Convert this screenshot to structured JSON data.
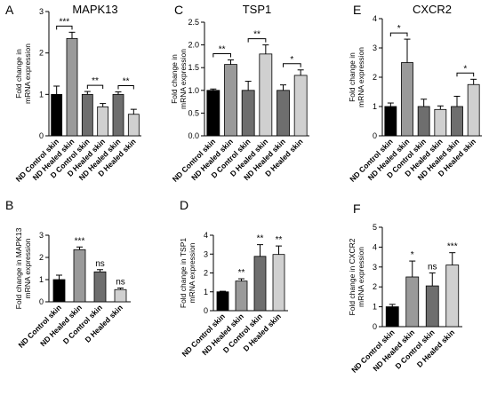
{
  "chart_data": [
    {
      "panel": "A",
      "type": "bar",
      "title": "MAPK13",
      "ylabel": [
        "Fold change in",
        "mRNA expression"
      ],
      "ylim": [
        0,
        3
      ],
      "yticks": [
        0,
        1,
        2,
        3
      ],
      "categories": [
        "ND Control skin",
        "ND Healed skin",
        "D Control skin",
        "D Healed skin",
        "ND Healed skin",
        "D Healed skin"
      ],
      "values": [
        1.0,
        2.35,
        1.0,
        0.7,
        1.0,
        0.52
      ],
      "errors": [
        0.2,
        0.15,
        0.07,
        0.08,
        0.06,
        0.12
      ],
      "colors": [
        "#000000",
        "#9a9a9a",
        "#6e6e6e",
        "#d0d0d0",
        "#6e6e6e",
        "#d0d0d0"
      ],
      "brackets": [
        {
          "from": 0,
          "to": 1,
          "label": "***"
        },
        {
          "from": 2,
          "to": 3,
          "label": "**"
        },
        {
          "from": 4,
          "to": 5,
          "label": "**"
        }
      ]
    },
    {
      "panel": "C",
      "type": "bar",
      "title": "TSP1",
      "ylabel": [
        "Fold change in",
        "mRNA expression"
      ],
      "ylim": [
        0,
        2.5
      ],
      "yticks": [
        0.0,
        0.5,
        1.0,
        1.5,
        2.0,
        2.5
      ],
      "categories": [
        "ND Control skin",
        "ND Healed skin",
        "D Control skin",
        "D Healed skin",
        "ND Healed skin",
        "D Healed skin"
      ],
      "values": [
        1.0,
        1.57,
        1.0,
        1.8,
        1.0,
        1.33
      ],
      "errors": [
        0.03,
        0.1,
        0.2,
        0.2,
        0.12,
        0.12
      ],
      "colors": [
        "#000000",
        "#9a9a9a",
        "#6e6e6e",
        "#d0d0d0",
        "#6e6e6e",
        "#d0d0d0"
      ],
      "brackets": [
        {
          "from": 0,
          "to": 1,
          "label": "**"
        },
        {
          "from": 2,
          "to": 3,
          "label": "**"
        },
        {
          "from": 4,
          "to": 5,
          "label": "*"
        }
      ]
    },
    {
      "panel": "E",
      "type": "bar",
      "title": "CXCR2",
      "ylabel": [
        "Fold change in",
        "mRNA expression"
      ],
      "ylim": [
        0,
        4
      ],
      "yticks": [
        0,
        1,
        2,
        3,
        4
      ],
      "categories": [
        "ND Control skin",
        "ND Healed skin",
        "D Control skin",
        "D Healed skin",
        "ND Healed skin",
        "D Healed skin"
      ],
      "values": [
        1.0,
        2.5,
        1.0,
        0.9,
        1.0,
        1.75
      ],
      "errors": [
        0.12,
        0.8,
        0.25,
        0.12,
        0.35,
        0.18
      ],
      "colors": [
        "#000000",
        "#9a9a9a",
        "#6e6e6e",
        "#d0d0d0",
        "#6e6e6e",
        "#d0d0d0"
      ],
      "brackets": [
        {
          "from": 0,
          "to": 1,
          "label": "*"
        },
        {
          "from": 4,
          "to": 5,
          "label": "*"
        }
      ]
    },
    {
      "panel": "B",
      "type": "bar",
      "title": "",
      "ylabel": [
        "Fold change in MAPK13",
        "mRNA expression"
      ],
      "ylim": [
        0,
        3
      ],
      "yticks": [
        0,
        1,
        2,
        3
      ],
      "categories": [
        "ND Control skin",
        "ND Healed skin",
        "D Control skin",
        "D Healed skin"
      ],
      "values": [
        1.0,
        2.35,
        1.35,
        0.55
      ],
      "errors": [
        0.2,
        0.12,
        0.1,
        0.07
      ],
      "colors": [
        "#000000",
        "#9a9a9a",
        "#6e6e6e",
        "#d0d0d0"
      ],
      "annotations": [
        "",
        "***",
        "ns",
        "ns"
      ]
    },
    {
      "panel": "D",
      "type": "bar",
      "title": "",
      "ylabel": [
        "Fold change in TSP1",
        "mRNA expression"
      ],
      "ylim": [
        0,
        4
      ],
      "yticks": [
        0,
        1,
        2,
        3,
        4
      ],
      "categories": [
        "ND Control skin",
        "ND Healed skin",
        "D Control skin",
        "D Healed skin"
      ],
      "values": [
        1.0,
        1.57,
        2.88,
        2.98
      ],
      "errors": [
        0.03,
        0.12,
        0.62,
        0.45
      ],
      "colors": [
        "#000000",
        "#9a9a9a",
        "#6e6e6e",
        "#d0d0d0"
      ],
      "annotations": [
        "",
        "**",
        "**",
        "**"
      ]
    },
    {
      "panel": "F",
      "type": "bar",
      "title": "",
      "ylabel": [
        "Fold change in CXCR2",
        "mRNA expression"
      ],
      "ylim": [
        0,
        5
      ],
      "yticks": [
        0,
        1,
        2,
        3,
        4,
        5
      ],
      "categories": [
        "ND Control skin",
        "ND Healed skin",
        "D Control skin",
        "D Healed skin"
      ],
      "values": [
        1.0,
        2.5,
        2.05,
        3.1
      ],
      "errors": [
        0.12,
        0.8,
        0.65,
        0.62
      ],
      "colors": [
        "#000000",
        "#9a9a9a",
        "#6e6e6e",
        "#d0d0d0"
      ],
      "annotations": [
        "",
        "*",
        "ns",
        "***"
      ]
    }
  ]
}
